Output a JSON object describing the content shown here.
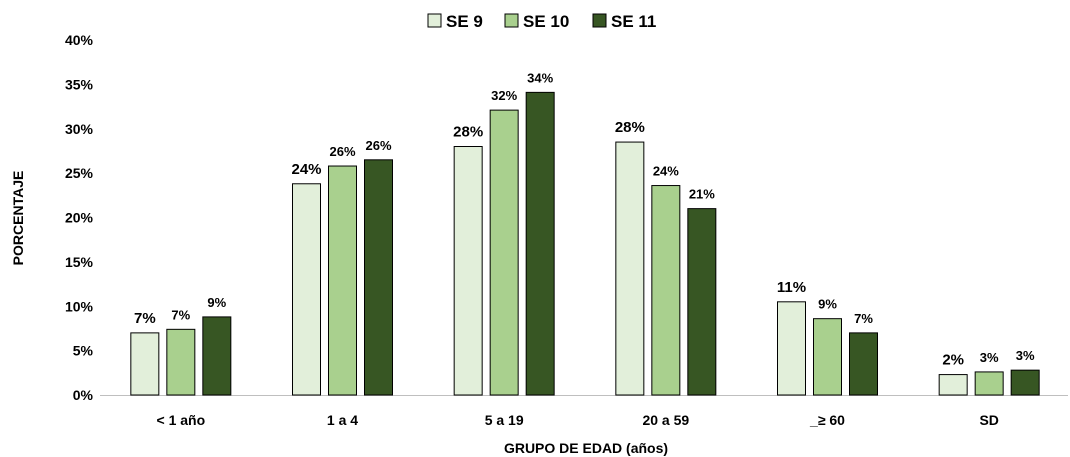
{
  "chart_data": {
    "type": "bar",
    "title": "",
    "xlabel": "GRUPO DE EDAD (años)",
    "ylabel": "PORCENTAJE",
    "ylim": [
      0,
      40
    ],
    "yticks": [
      "0%",
      "5%",
      "10%",
      "15%",
      "20%",
      "25%",
      "30%",
      "35%",
      "40%"
    ],
    "categories": [
      "< 1 año",
      "1 a 4",
      "5 a 19",
      "20 a 59",
      "_≥ 60",
      "SD"
    ],
    "legend_position": "top-center",
    "grid": false,
    "series": [
      {
        "name": "SE 9",
        "color": "#e2efda",
        "values": [
          7.0,
          23.8,
          28.0,
          28.5,
          10.5,
          2.3
        ],
        "labels": [
          "7%",
          "24%",
          "28%",
          "28%",
          "11%",
          "2%"
        ]
      },
      {
        "name": "SE 10",
        "color": "#a9d08e",
        "values": [
          7.4,
          25.8,
          32.1,
          23.6,
          8.6,
          2.6
        ],
        "labels": [
          "7%",
          "26%",
          "32%",
          "24%",
          "9%",
          "3%"
        ]
      },
      {
        "name": "SE 11",
        "color": "#375623",
        "values": [
          8.8,
          26.5,
          34.1,
          21.0,
          7.0,
          2.8
        ],
        "labels": [
          "9%",
          "26%",
          "34%",
          "21%",
          "7%",
          "3%"
        ]
      }
    ]
  }
}
